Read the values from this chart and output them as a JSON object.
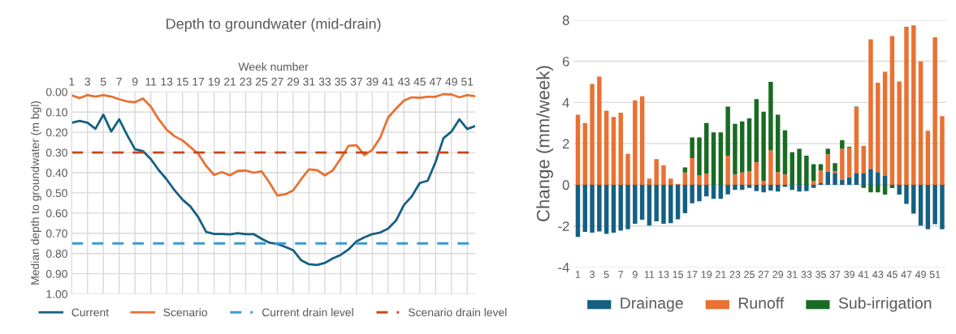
{
  "chart_data": [
    {
      "type": "line",
      "title": "Depth to groundwater (mid-drain)",
      "xlabel": "Week number",
      "ylabel": "Median depth to groundwater (m bgl)",
      "x": [
        1,
        2,
        3,
        4,
        5,
        6,
        7,
        8,
        9,
        10,
        11,
        12,
        13,
        14,
        15,
        16,
        17,
        18,
        19,
        20,
        21,
        22,
        23,
        24,
        25,
        26,
        27,
        28,
        29,
        30,
        31,
        32,
        33,
        34,
        35,
        36,
        37,
        38,
        39,
        40,
        41,
        42,
        43,
        44,
        45,
        46,
        47,
        48,
        49,
        50,
        51,
        52
      ],
      "xlim": [
        1,
        52
      ],
      "xticks": [
        1,
        3,
        5,
        7,
        9,
        11,
        13,
        15,
        17,
        19,
        21,
        23,
        25,
        27,
        29,
        31,
        33,
        35,
        37,
        39,
        41,
        43,
        45,
        47,
        49,
        51
      ],
      "ylim": [
        1.0,
        0.0
      ],
      "yticks": [
        {
          "value": 0.0,
          "label": "0.00"
        },
        {
          "value": 0.1,
          "label": "0.10"
        },
        {
          "value": 0.2,
          "label": "0.20"
        },
        {
          "value": 0.3,
          "label": "0.30"
        },
        {
          "value": 0.4,
          "label": "0.40"
        },
        {
          "value": 0.5,
          "label": "0.50"
        },
        {
          "value": 0.6,
          "label": "0.60"
        },
        {
          "value": 0.7,
          "label": "0.70"
        },
        {
          "value": 0.8,
          "label": "0.80"
        },
        {
          "value": 0.9,
          "label": "0.90"
        },
        {
          "value": 1.0,
          "label": "1.00"
        }
      ],
      "grid": true,
      "legend": "bottom",
      "marker": "none",
      "line_style": "solid",
      "series": [
        {
          "name": "Current",
          "color": "#156082",
          "values": [
            0.153,
            0.144,
            0.153,
            0.183,
            0.113,
            0.196,
            0.136,
            0.213,
            0.284,
            0.293,
            0.333,
            0.387,
            0.433,
            0.487,
            0.533,
            0.567,
            0.62,
            0.693,
            0.703,
            0.703,
            0.705,
            0.699,
            0.704,
            0.704,
            0.727,
            0.747,
            0.753,
            0.767,
            0.784,
            0.833,
            0.853,
            0.857,
            0.847,
            0.824,
            0.807,
            0.78,
            0.74,
            0.72,
            0.704,
            0.696,
            0.677,
            0.637,
            0.56,
            0.517,
            0.451,
            0.44,
            0.347,
            0.229,
            0.197,
            0.136,
            0.184,
            0.169
          ]
        },
        {
          "name": "Scenario",
          "color": "#e97132",
          "values": [
            0.017,
            0.031,
            0.016,
            0.023,
            0.016,
            0.023,
            0.037,
            0.047,
            0.051,
            0.033,
            0.073,
            0.136,
            0.187,
            0.22,
            0.24,
            0.273,
            0.307,
            0.367,
            0.411,
            0.397,
            0.413,
            0.391,
            0.389,
            0.4,
            0.393,
            0.449,
            0.513,
            0.507,
            0.487,
            0.433,
            0.383,
            0.387,
            0.413,
            0.389,
            0.331,
            0.267,
            0.264,
            0.313,
            0.287,
            0.227,
            0.127,
            0.083,
            0.043,
            0.027,
            0.029,
            0.024,
            0.024,
            0.011,
            0.013,
            0.027,
            0.016,
            0.021
          ]
        }
      ],
      "ref_lines": [
        {
          "axis": "y",
          "value": 0.75,
          "label": "Current drain level",
          "color": "#3a9bd0",
          "line_style": "dashed"
        },
        {
          "axis": "y",
          "value": 0.3,
          "label": "Scenario drain level",
          "color": "#c8451b",
          "line_style": "dashed"
        }
      ]
    },
    {
      "type": "bar",
      "stacked": true,
      "ylabel": "Change (mm/week)",
      "categories": [
        "1",
        null,
        "3",
        null,
        "5",
        null,
        "7",
        null,
        "9",
        null,
        "11",
        null,
        "13",
        null,
        "15",
        null,
        "17",
        null,
        "19",
        null,
        "21",
        null,
        "23",
        null,
        "25",
        null,
        "27",
        null,
        "29",
        null,
        "31",
        null,
        "33",
        null,
        "35",
        null,
        "37",
        null,
        "39",
        null,
        "41",
        null,
        "43",
        null,
        "45",
        null,
        "47",
        null,
        "49",
        null,
        "51",
        null
      ],
      "ylim": [
        -4,
        8
      ],
      "yticks": [
        -4,
        -2,
        0,
        2,
        4,
        6,
        8
      ],
      "grid": "y",
      "legend": "bottom",
      "series": [
        {
          "name": "Drainage",
          "color": "#156082",
          "values": [
            -2.53,
            -2.28,
            -2.32,
            -2.26,
            -2.38,
            -2.32,
            -2.22,
            -2.16,
            -1.89,
            -1.69,
            -1.98,
            -1.77,
            -1.89,
            -1.86,
            -1.67,
            -1.38,
            -0.9,
            -0.8,
            -0.56,
            -0.68,
            -0.68,
            -0.46,
            -0.25,
            -0.25,
            -0.15,
            -0.31,
            -0.37,
            -0.28,
            -0.33,
            -0.1,
            -0.25,
            -0.33,
            -0.31,
            -0.15,
            0.08,
            0.64,
            0.58,
            0.25,
            0.37,
            0.55,
            0.55,
            0.78,
            0.62,
            0.43,
            0,
            -0.47,
            -0.93,
            -1.4,
            -1.98,
            -2.16,
            -1.91,
            -2.16
          ]
        },
        {
          "name": "Runoff",
          "color": "#e97132",
          "values": [
            3.4,
            3.0,
            4.9,
            5.25,
            3.6,
            3.3,
            3.5,
            1.5,
            4.1,
            4.3,
            0.3,
            1.25,
            0.95,
            0.3,
            0.05,
            0.6,
            1.3,
            0.45,
            0.55,
            0,
            0,
            1.42,
            0.5,
            0.6,
            0.65,
            1.1,
            0.2,
            1.67,
            0.62,
            0.5,
            0,
            0,
            0,
            0.18,
            0.62,
            0.84,
            0.07,
            1.5,
            1.43,
            3.22,
            1.34,
            6.28,
            4.34,
            5.06,
            7.22,
            5.02,
            7.67,
            7.74,
            5.99,
            2.63,
            7.16,
            3.33
          ]
        },
        {
          "name": "Sub-irrigation",
          "color": "#196b24",
          "values": [
            0,
            0,
            0,
            0,
            0,
            0,
            0,
            0,
            0,
            0,
            0,
            0,
            0,
            0,
            0,
            0.25,
            1.0,
            1.85,
            2.45,
            2.55,
            2.55,
            2.38,
            2.46,
            2.48,
            2.58,
            3.06,
            3.35,
            3.33,
            2.78,
            2.15,
            1.58,
            1.75,
            1.42,
            0.82,
            0.3,
            0.27,
            0.4,
            0.41,
            0.05,
            0.03,
            -0.15,
            -0.37,
            -0.37,
            -0.47,
            -0.16,
            0,
            0,
            0,
            0,
            0,
            0,
            0
          ]
        }
      ]
    }
  ]
}
